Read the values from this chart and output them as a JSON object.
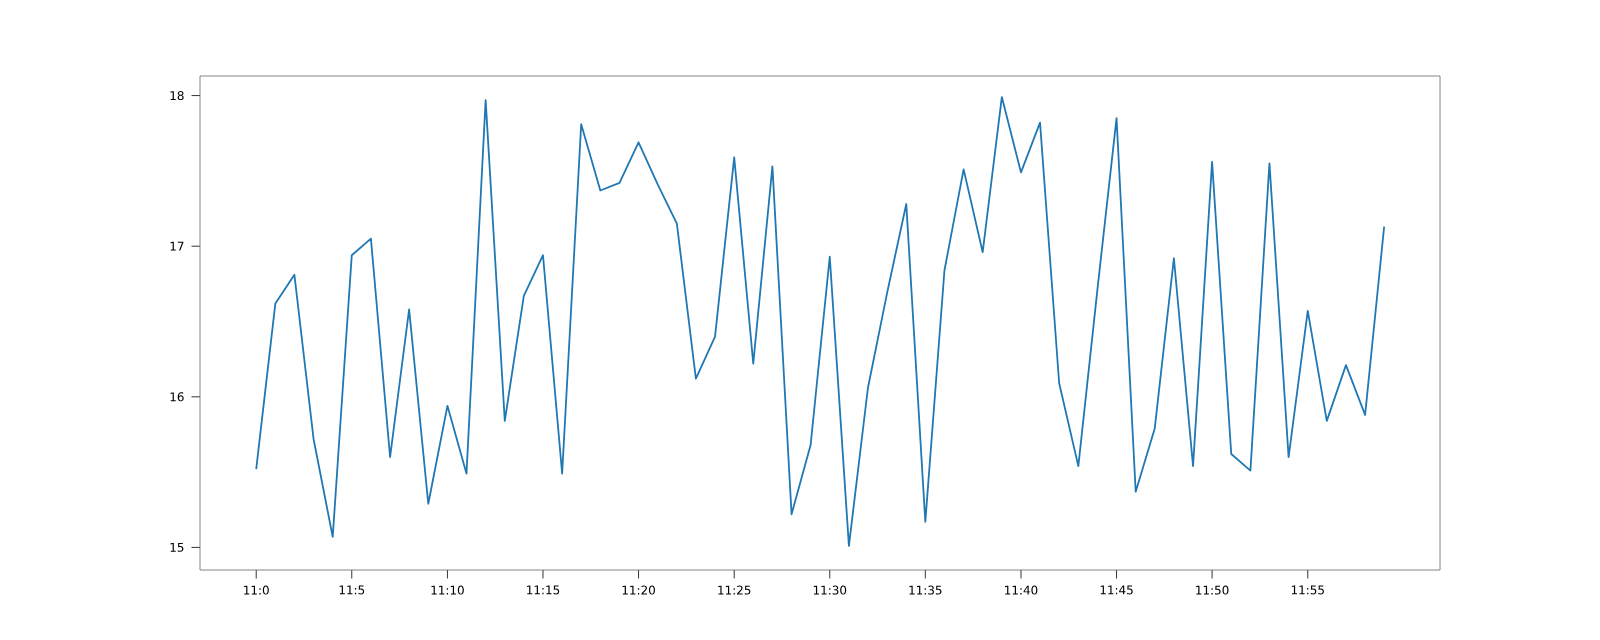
{
  "chart_data": {
    "type": "line",
    "x": [
      11.0,
      11.0167,
      11.0333,
      11.05,
      11.0667,
      11.0833,
      11.1,
      11.1167,
      11.1333,
      11.15,
      11.1667,
      11.1833,
      11.2,
      11.2167,
      11.2333,
      11.25,
      11.2667,
      11.2833,
      11.3,
      11.3167,
      11.3333,
      11.35,
      11.3667,
      11.3833,
      11.4,
      11.4167,
      11.4333,
      11.45,
      11.4667,
      11.4833,
      11.5,
      11.5167,
      11.5333,
      11.55,
      11.5667,
      11.5833,
      11.6,
      11.6167,
      11.6333,
      11.65,
      11.6667,
      11.6833,
      11.7,
      11.7167,
      11.7333,
      11.75,
      11.7667,
      11.7833,
      11.8,
      11.8167,
      11.8333,
      11.85,
      11.8667,
      11.8833,
      11.9,
      11.9167,
      11.9333,
      11.95,
      11.9667,
      11.9833
    ],
    "series": [
      {
        "color": "#1f77b4",
        "values": [
          15.52,
          16.62,
          16.81,
          15.72,
          15.07,
          16.94,
          17.05,
          15.6,
          16.58,
          15.29,
          15.94,
          15.49,
          17.97,
          15.84,
          16.67,
          16.94,
          15.49,
          17.81,
          17.37,
          17.42,
          17.69,
          17.41,
          17.15,
          16.12,
          16.4,
          17.59,
          16.22,
          17.53,
          15.22,
          15.68,
          16.93,
          15.01,
          16.06,
          16.69,
          17.28,
          15.17,
          16.84,
          17.51,
          16.96,
          17.99,
          17.49,
          17.82,
          16.09,
          15.54,
          16.71,
          17.85,
          15.37,
          15.79,
          16.92,
          15.54,
          17.56,
          15.62,
          15.51,
          17.55,
          15.6,
          16.57,
          15.84,
          16.21,
          15.88,
          17.13
        ]
      }
    ],
    "xlim": [
      10.951,
      12.032
    ],
    "ylim": [
      14.85,
      18.13
    ],
    "xticks": [
      {
        "value": 11.0,
        "label": "11:0"
      },
      {
        "value": 11.0833,
        "label": "11:5"
      },
      {
        "value": 11.1667,
        "label": "11:10"
      },
      {
        "value": 11.25,
        "label": "11:15"
      },
      {
        "value": 11.3333,
        "label": "11:20"
      },
      {
        "value": 11.4167,
        "label": "11:25"
      },
      {
        "value": 11.5,
        "label": "11:30"
      },
      {
        "value": 11.5833,
        "label": "11:35"
      },
      {
        "value": 11.6667,
        "label": "11:40"
      },
      {
        "value": 11.75,
        "label": "11:45"
      },
      {
        "value": 11.8333,
        "label": "11:50"
      },
      {
        "value": 11.9167,
        "label": "11:55"
      }
    ],
    "yticks": [
      15,
      16,
      17,
      18
    ]
  }
}
